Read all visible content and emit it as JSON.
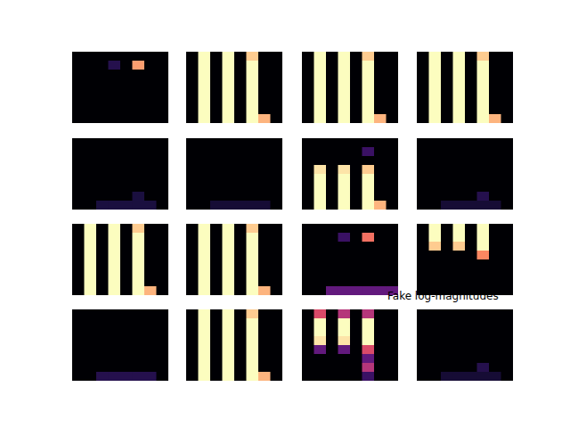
{
  "title": "Fake log-magnitudes",
  "chart_data": [
    {
      "type": "heatmap",
      "tick_labels": false,
      "clim": [
        0,
        1
      ],
      "cells": [
        [
          0,
          0,
          0,
          0,
          0,
          0,
          0,
          0
        ],
        [
          0,
          0,
          0,
          0.15,
          0,
          0.8,
          0,
          0
        ],
        [
          0,
          0,
          0,
          0,
          0,
          0,
          0,
          0
        ],
        [
          0,
          0,
          0,
          0,
          0,
          0,
          0,
          0
        ],
        [
          0,
          0,
          0,
          0,
          0,
          0,
          0,
          0
        ],
        [
          0,
          0,
          0,
          0,
          0,
          0,
          0,
          0
        ],
        [
          0,
          0,
          0,
          0,
          0,
          0,
          0,
          0
        ],
        [
          0,
          0,
          0,
          0,
          0,
          0,
          0,
          0
        ]
      ]
    },
    {
      "type": "heatmap",
      "tick_labels": false,
      "clim": [
        0,
        1
      ],
      "cells": [
        [
          0,
          1,
          0,
          1,
          0,
          0.9,
          0,
          0
        ],
        [
          0,
          1,
          0,
          1,
          0,
          1,
          0,
          0
        ],
        [
          0,
          1,
          0,
          1,
          0,
          1,
          0,
          0
        ],
        [
          0,
          1,
          0,
          1,
          0,
          1,
          0,
          0
        ],
        [
          0,
          1,
          0,
          1,
          0,
          1,
          0,
          0
        ],
        [
          0,
          1,
          0,
          1,
          0,
          1,
          0,
          0
        ],
        [
          0,
          1,
          0,
          1,
          0,
          1,
          0,
          0
        ],
        [
          0,
          1,
          0,
          1,
          0,
          1,
          0.85,
          0
        ]
      ]
    },
    {
      "type": "heatmap",
      "tick_labels": false,
      "clim": [
        0,
        1
      ],
      "cells": [
        [
          0,
          1,
          0,
          1,
          0,
          0.9,
          0,
          0
        ],
        [
          0,
          1,
          0,
          1,
          0,
          1,
          0,
          0
        ],
        [
          0,
          1,
          0,
          1,
          0,
          1,
          0,
          0
        ],
        [
          0,
          1,
          0,
          1,
          0,
          1,
          0,
          0
        ],
        [
          0,
          1,
          0,
          1,
          0,
          1,
          0,
          0
        ],
        [
          0,
          1,
          0,
          1,
          0,
          1,
          0,
          0
        ],
        [
          0,
          1,
          0,
          1,
          0,
          1,
          0,
          0
        ],
        [
          0,
          1,
          0,
          1,
          0,
          1,
          0.85,
          0
        ]
      ]
    },
    {
      "type": "heatmap",
      "tick_labels": false,
      "clim": [
        0,
        1
      ],
      "cells": [
        [
          0,
          1,
          0,
          1,
          0,
          0.9,
          0,
          0
        ],
        [
          0,
          1,
          0,
          1,
          0,
          1,
          0,
          0
        ],
        [
          0,
          1,
          0,
          1,
          0,
          1,
          0,
          0
        ],
        [
          0,
          1,
          0,
          1,
          0,
          1,
          0,
          0
        ],
        [
          0,
          1,
          0,
          1,
          0,
          1,
          0,
          0
        ],
        [
          0,
          1,
          0,
          1,
          0,
          1,
          0,
          0
        ],
        [
          0,
          1,
          0,
          1,
          0,
          1,
          0,
          0
        ],
        [
          0,
          1,
          0,
          1,
          0,
          1,
          0.85,
          0
        ]
      ]
    },
    {
      "type": "heatmap",
      "tick_labels": false,
      "clim": [
        0,
        1
      ],
      "cells": [
        [
          0,
          0,
          0,
          0,
          0,
          0,
          0,
          0
        ],
        [
          0,
          0,
          0,
          0,
          0,
          0,
          0,
          0
        ],
        [
          0,
          0,
          0,
          0,
          0,
          0,
          0,
          0
        ],
        [
          0,
          0,
          0,
          0,
          0,
          0,
          0,
          0
        ],
        [
          0,
          0,
          0,
          0,
          0,
          0,
          0,
          0
        ],
        [
          0,
          0,
          0,
          0,
          0,
          0,
          0,
          0
        ],
        [
          0,
          0,
          0,
          0,
          0,
          0.12,
          0,
          0
        ],
        [
          0,
          0,
          0.12,
          0.12,
          0.12,
          0.12,
          0.12,
          0
        ]
      ]
    },
    {
      "type": "heatmap",
      "tick_labels": false,
      "clim": [
        0,
        1
      ],
      "cells": [
        [
          0,
          0,
          0,
          0,
          0,
          0,
          0,
          0
        ],
        [
          0,
          0,
          0,
          0,
          0,
          0,
          0,
          0
        ],
        [
          0,
          0,
          0,
          0,
          0,
          0,
          0,
          0
        ],
        [
          0,
          0,
          0,
          0,
          0,
          0,
          0,
          0
        ],
        [
          0,
          0,
          0,
          0,
          0,
          0,
          0,
          0
        ],
        [
          0,
          0,
          0,
          0,
          0,
          0,
          0,
          0
        ],
        [
          0,
          0,
          0,
          0,
          0,
          0,
          0,
          0
        ],
        [
          0,
          0,
          0.1,
          0.1,
          0.1,
          0.1,
          0.1,
          0
        ]
      ]
    },
    {
      "type": "heatmap",
      "tick_labels": false,
      "clim": [
        0,
        1
      ],
      "cells": [
        [
          0,
          0,
          0,
          0,
          0,
          0,
          0,
          0
        ],
        [
          0,
          0,
          0,
          0,
          0,
          0.2,
          0,
          0
        ],
        [
          0,
          0,
          0,
          0,
          0,
          0,
          0,
          0
        ],
        [
          0,
          0.95,
          0,
          0.95,
          0,
          0.9,
          0,
          0
        ],
        [
          0,
          1,
          0,
          1,
          0,
          1,
          0,
          0
        ],
        [
          0,
          1,
          0,
          1,
          0,
          1,
          0,
          0
        ],
        [
          0,
          1,
          0,
          1,
          0,
          1,
          0,
          0
        ],
        [
          0,
          1,
          0,
          1,
          0,
          1,
          0.85,
          0
        ]
      ]
    },
    {
      "type": "heatmap",
      "tick_labels": false,
      "clim": [
        0,
        1
      ],
      "cells": [
        [
          0,
          0,
          0,
          0,
          0,
          0,
          0,
          0
        ],
        [
          0,
          0,
          0,
          0,
          0,
          0,
          0,
          0
        ],
        [
          0,
          0,
          0,
          0,
          0,
          0,
          0,
          0
        ],
        [
          0,
          0,
          0,
          0,
          0,
          0,
          0,
          0
        ],
        [
          0,
          0,
          0,
          0,
          0,
          0,
          0,
          0
        ],
        [
          0,
          0,
          0,
          0,
          0,
          0,
          0,
          0
        ],
        [
          0,
          0,
          0,
          0,
          0,
          0.15,
          0,
          0
        ],
        [
          0,
          0,
          0.1,
          0.1,
          0.1,
          0.1,
          0.1,
          0
        ]
      ]
    },
    {
      "type": "heatmap",
      "tick_labels": false,
      "clim": [
        0,
        1
      ],
      "cells": [
        [
          0,
          1,
          0,
          1,
          0,
          0.9,
          0,
          0
        ],
        [
          0,
          1,
          0,
          1,
          0,
          1,
          0,
          0
        ],
        [
          0,
          1,
          0,
          1,
          0,
          1,
          0,
          0
        ],
        [
          0,
          1,
          0,
          1,
          0,
          1,
          0,
          0
        ],
        [
          0,
          1,
          0,
          1,
          0,
          1,
          0,
          0
        ],
        [
          0,
          1,
          0,
          1,
          0,
          1,
          0,
          0
        ],
        [
          0,
          1,
          0,
          1,
          0,
          1,
          0,
          0
        ],
        [
          0,
          1,
          0,
          1,
          0,
          1,
          0.85,
          0
        ]
      ]
    },
    {
      "type": "heatmap",
      "tick_labels": false,
      "clim": [
        0,
        1
      ],
      "cells": [
        [
          0,
          1,
          0,
          1,
          0,
          0.9,
          0,
          0
        ],
        [
          0,
          1,
          0,
          1,
          0,
          1,
          0,
          0
        ],
        [
          0,
          1,
          0,
          1,
          0,
          1,
          0,
          0
        ],
        [
          0,
          1,
          0,
          1,
          0,
          1,
          0,
          0
        ],
        [
          0,
          1,
          0,
          1,
          0,
          1,
          0,
          0
        ],
        [
          0,
          1,
          0,
          1,
          0,
          1,
          0,
          0
        ],
        [
          0,
          1,
          0,
          1,
          0,
          1,
          0,
          0
        ],
        [
          0,
          1,
          0,
          1,
          0,
          1,
          0.85,
          0
        ]
      ]
    },
    {
      "type": "heatmap",
      "tick_labels": false,
      "clim": [
        0,
        1
      ],
      "cells": [
        [
          0,
          0,
          0,
          0,
          0,
          0,
          0,
          0
        ],
        [
          0,
          0,
          0,
          0.2,
          0,
          0.7,
          0,
          0
        ],
        [
          0,
          0,
          0,
          0,
          0,
          0,
          0,
          0
        ],
        [
          0,
          0,
          0,
          0,
          0,
          0,
          0,
          0
        ],
        [
          0,
          0,
          0,
          0,
          0,
          0,
          0,
          0
        ],
        [
          0,
          0,
          0,
          0,
          0,
          0,
          0,
          0
        ],
        [
          0,
          0,
          0,
          0,
          0,
          0,
          0,
          0
        ],
        [
          0,
          0,
          0.3,
          0.3,
          0.3,
          0.3,
          0.3,
          0.3
        ]
      ]
    },
    {
      "type": "heatmap",
      "tick_labels": false,
      "clim": [
        0,
        1
      ],
      "cells": [
        [
          0,
          1,
          0,
          1,
          0,
          1,
          0,
          0
        ],
        [
          0,
          1,
          0,
          1,
          0,
          1,
          0,
          0
        ],
        [
          0,
          0.9,
          0,
          0.9,
          0,
          1,
          0,
          0
        ],
        [
          0,
          0,
          0,
          0,
          0,
          0.75,
          0,
          0
        ],
        [
          0,
          0,
          0,
          0,
          0,
          0,
          0,
          0
        ],
        [
          0,
          0,
          0,
          0,
          0,
          0,
          0,
          0
        ],
        [
          0,
          0,
          0,
          0,
          0,
          0,
          0,
          0
        ],
        [
          0,
          0,
          0,
          0,
          0,
          0,
          0,
          0
        ]
      ]
    },
    {
      "type": "heatmap",
      "tick_labels": false,
      "clim": [
        0,
        1
      ],
      "cells": [
        [
          0,
          0,
          0,
          0,
          0,
          0,
          0,
          0
        ],
        [
          0,
          0,
          0,
          0,
          0,
          0,
          0,
          0
        ],
        [
          0,
          0,
          0,
          0,
          0,
          0,
          0,
          0
        ],
        [
          0,
          0,
          0,
          0,
          0,
          0,
          0,
          0
        ],
        [
          0,
          0,
          0,
          0,
          0,
          0,
          0,
          0
        ],
        [
          0,
          0,
          0,
          0,
          0,
          0,
          0,
          0
        ],
        [
          0,
          0,
          0,
          0,
          0,
          0,
          0,
          0
        ],
        [
          0,
          0,
          0.15,
          0.15,
          0.15,
          0.15,
          0.15,
          0
        ]
      ]
    },
    {
      "type": "heatmap",
      "tick_labels": false,
      "clim": [
        0,
        1
      ],
      "cells": [
        [
          0,
          1,
          0,
          1,
          0,
          0.9,
          0,
          0
        ],
        [
          0,
          1,
          0,
          1,
          0,
          1,
          0,
          0
        ],
        [
          0,
          1,
          0,
          1,
          0,
          1,
          0,
          0
        ],
        [
          0,
          1,
          0,
          1,
          0,
          1,
          0,
          0
        ],
        [
          0,
          1,
          0,
          1,
          0,
          1,
          0,
          0
        ],
        [
          0,
          1,
          0,
          1,
          0,
          1,
          0,
          0
        ],
        [
          0,
          1,
          0,
          1,
          0,
          1,
          0,
          0
        ],
        [
          0,
          1,
          0,
          1,
          0,
          1,
          0.85,
          0
        ]
      ]
    },
    {
      "type": "heatmap",
      "tick_labels": false,
      "clim": [
        0,
        1
      ],
      "cells": [
        [
          0,
          0.6,
          0,
          0.5,
          0,
          0.5,
          0,
          0
        ],
        [
          0,
          1,
          0,
          1,
          0,
          1,
          0,
          0
        ],
        [
          0,
          1,
          0,
          1,
          0,
          1,
          0,
          0
        ],
        [
          0,
          0.95,
          0,
          0.95,
          0,
          1,
          0,
          0
        ],
        [
          0,
          0.3,
          0,
          0.3,
          0,
          0.6,
          0,
          0
        ],
        [
          0,
          0,
          0,
          0,
          0,
          0.3,
          0,
          0
        ],
        [
          0,
          0,
          0,
          0,
          0,
          0.5,
          0,
          0
        ],
        [
          0,
          0,
          0,
          0,
          0,
          0.2,
          0,
          0
        ]
      ]
    },
    {
      "type": "heatmap",
      "tick_labels": false,
      "clim": [
        0,
        1
      ],
      "cells": [
        [
          0,
          0,
          0,
          0,
          0,
          0,
          0,
          0
        ],
        [
          0,
          0,
          0,
          0,
          0,
          0,
          0,
          0
        ],
        [
          0,
          0,
          0,
          0,
          0,
          0,
          0,
          0
        ],
        [
          0,
          0,
          0,
          0,
          0,
          0,
          0,
          0
        ],
        [
          0,
          0,
          0,
          0,
          0,
          0,
          0,
          0
        ],
        [
          0,
          0,
          0,
          0,
          0,
          0,
          0,
          0
        ],
        [
          0,
          0,
          0,
          0,
          0,
          0.15,
          0,
          0
        ],
        [
          0,
          0,
          0.1,
          0.1,
          0.1,
          0.1,
          0.1,
          0
        ]
      ]
    }
  ]
}
